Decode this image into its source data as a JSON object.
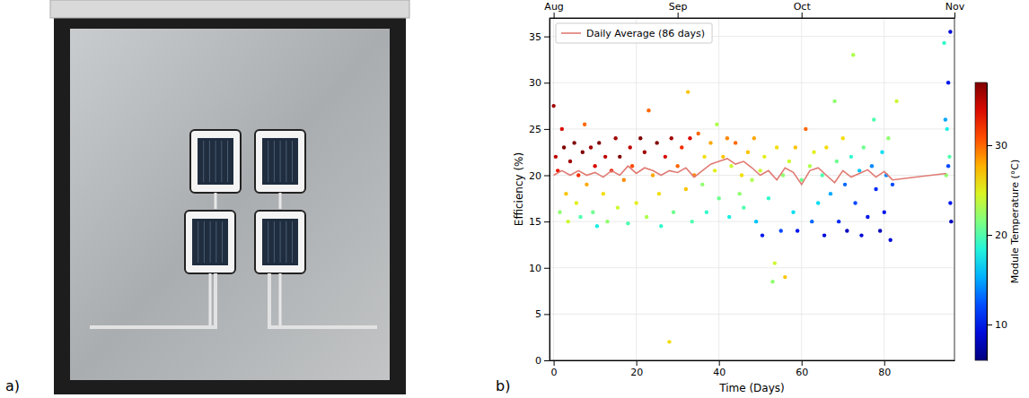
{
  "panel_labels": [
    "a)",
    "b)"
  ],
  "chart_data": {
    "type": "scatter",
    "x_label": "Time (Days)",
    "y_label": "Efficiency (%)",
    "xlim": [
      -1,
      97
    ],
    "xticks": [
      0,
      20,
      40,
      60,
      80
    ],
    "x2ticks": [
      {
        "value": 0,
        "label": "Aug"
      },
      {
        "value": 30,
        "label": "Sep"
      },
      {
        "value": 60,
        "label": "Oct"
      },
      {
        "value": 97,
        "label": "Nov"
      }
    ],
    "ylim": [
      0,
      37
    ],
    "yticks": [
      0,
      5,
      10,
      15,
      20,
      25,
      30,
      35
    ],
    "grid": true,
    "legend": "upper left",
    "points": {
      "x": [
        0,
        0.5,
        1,
        1.5,
        2,
        2.5,
        3,
        3.5,
        4,
        5,
        5.5,
        6,
        6.5,
        7,
        7.5,
        8,
        9,
        9.5,
        10,
        10.5,
        11,
        12,
        12.5,
        13,
        14,
        15,
        15.5,
        16,
        17,
        18,
        18.5,
        19,
        20,
        21,
        22,
        22.5,
        23,
        24,
        25,
        25.5,
        26,
        27,
        28,
        28.5,
        29,
        30,
        31,
        32,
        32.5,
        33,
        33.5,
        34,
        35,
        36,
        36.5,
        37,
        38,
        39,
        39.5,
        40,
        41,
        42,
        42.5,
        43,
        44,
        45,
        45.5,
        46,
        47,
        48,
        48.5,
        49,
        50,
        50.5,
        51,
        52,
        53,
        53.5,
        54,
        55,
        55.5,
        56,
        57,
        58,
        58.5,
        59,
        60,
        61,
        62,
        62.5,
        63,
        64,
        65,
        65.5,
        66,
        67,
        68,
        68.5,
        69,
        70,
        70.5,
        71,
        72,
        72.5,
        73,
        74,
        74.5,
        75,
        76,
        77,
        77.5,
        78,
        79,
        79.5,
        80,
        80.5,
        81,
        81.5,
        82,
        83,
        94.5,
        95,
        95.5,
        96,
        95.8,
        96,
        95.2,
        96.2,
        95.5,
        94.8
      ],
      "values": [
        27.5,
        22,
        20.5,
        16,
        25,
        23,
        18,
        15,
        21.5,
        23.5,
        17,
        20,
        15.5,
        22.5,
        25.5,
        19,
        23,
        16,
        21,
        14.5,
        23.5,
        18,
        22,
        15,
        20.5,
        24,
        16.5,
        22,
        19.5,
        14.8,
        23,
        21,
        17,
        24,
        22.5,
        15.5,
        27,
        20,
        23.5,
        18,
        14.5,
        22,
        2,
        24,
        16,
        21,
        23,
        18.5,
        29,
        24,
        15,
        20,
        24.5,
        19,
        22,
        16,
        23.5,
        20.5,
        25.5,
        17.5,
        22,
        24,
        15.5,
        21,
        23.5,
        18,
        20,
        16.5,
        22.5,
        19.5,
        24,
        15,
        20.5,
        13.5,
        22,
        17.5,
        8.5,
        10.5,
        23,
        14,
        20,
        9,
        21.5,
        16,
        23,
        14,
        19.5,
        25,
        21,
        15,
        22.5,
        17,
        20,
        13.5,
        23,
        18,
        28,
        21.5,
        15,
        24,
        19,
        14,
        22,
        33,
        17,
        20.5,
        13.5,
        23,
        15.5,
        21,
        26,
        18.5,
        14,
        22.5,
        16,
        20,
        24,
        13,
        19,
        28,
        34.3,
        20,
        30,
        35.5,
        22,
        17,
        25,
        15,
        21,
        26
      ],
      "temperature": [
        36,
        35,
        33,
        22,
        34,
        37,
        27,
        24,
        36,
        37,
        25,
        32,
        20,
        37,
        30,
        28,
        36,
        21,
        34,
        18,
        37,
        26,
        35,
        22,
        33,
        36,
        24,
        37,
        29,
        20,
        35,
        31,
        25,
        37,
        36,
        23,
        30,
        28,
        37,
        26,
        19,
        34,
        26,
        36,
        21,
        30,
        32,
        27,
        27,
        34,
        20,
        29,
        30,
        22,
        26,
        19,
        28,
        25,
        23,
        21,
        27,
        29,
        18,
        24,
        30,
        22,
        26,
        20,
        27,
        23,
        28,
        16,
        24,
        10,
        25,
        19,
        22,
        24,
        26,
        12,
        22,
        27,
        24,
        17,
        27,
        10,
        21,
        30,
        23,
        13,
        25,
        17,
        20,
        9,
        26,
        15,
        22,
        21,
        11,
        26,
        13,
        8,
        19,
        23,
        12,
        16,
        9,
        21,
        10,
        14,
        20,
        11,
        8,
        17,
        10,
        14,
        22,
        9,
        12,
        24,
        19,
        22,
        10,
        9,
        20,
        10,
        18,
        8,
        12,
        15
      ]
    },
    "series": [
      {
        "name": "Daily Average (86 days)",
        "type": "line",
        "color": "#e07a72",
        "x": [
          0,
          2,
          4,
          6,
          8,
          10,
          12,
          14,
          16,
          18,
          20,
          22,
          24,
          26,
          28,
          30,
          32,
          34,
          36,
          38,
          40,
          42,
          44,
          46,
          48,
          50,
          52,
          54,
          56,
          58,
          60,
          62,
          64,
          66,
          68,
          70,
          72,
          74,
          76,
          78,
          80,
          82,
          95
        ],
        "values": [
          20,
          20.5,
          20,
          20.5,
          20,
          20.3,
          19.8,
          20.5,
          20,
          21,
          20.2,
          20.8,
          20.5,
          20,
          20.5,
          20.3,
          20.8,
          19.8,
          20.5,
          21.2,
          21.5,
          21.8,
          21.2,
          21.5,
          20.8,
          20,
          20.5,
          19.5,
          20.8,
          20.3,
          19,
          20.5,
          20.8,
          20,
          19.2,
          20.5,
          19.8,
          20.2,
          20.6,
          19.8,
          20.4,
          19.5,
          20.2
        ]
      }
    ],
    "colorbar": {
      "label": "Module Temperature (°C)",
      "range": [
        6,
        37
      ],
      "ticks": [
        10,
        20,
        30
      ]
    }
  }
}
